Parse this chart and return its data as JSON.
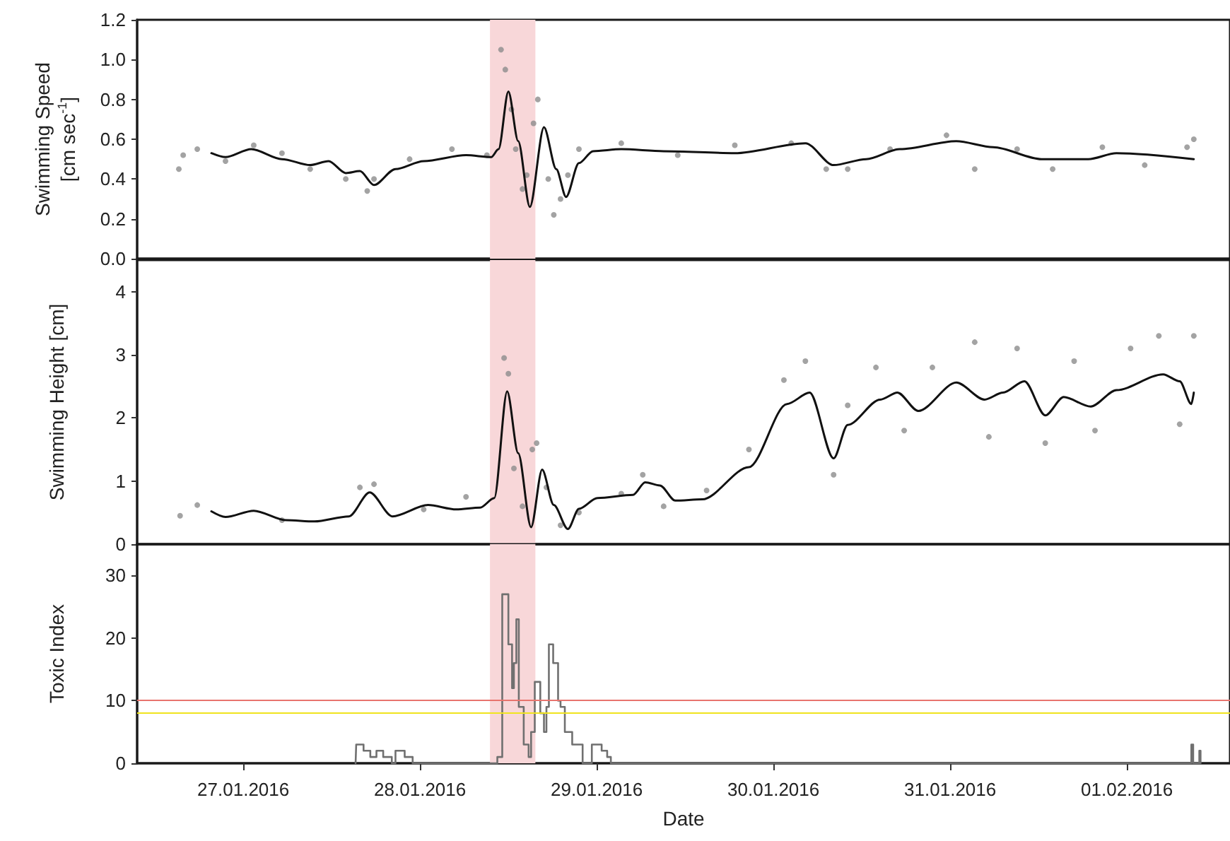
{
  "chart_data": [
    {
      "type": "line",
      "ylabel": "Swimming Speed\n[cm sec$^{-1}$]",
      "marker": "none",
      "tick_labels": "y",
      "xlim": [
        "2016-01-26T09:35",
        "2016-02-01T14:00"
      ],
      "ylim": [
        0,
        1.2
      ],
      "yticks": [
        {
          "value": 0,
          "label": "0.0"
        },
        {
          "value": 0.2,
          "label": "0.2"
        },
        {
          "value": 0.4,
          "label": "0.4"
        },
        {
          "value": 0.6,
          "label": "0.6"
        },
        {
          "value": 0.8,
          "label": "0.8"
        },
        {
          "value": 1,
          "label": "1.0"
        },
        {
          "value": 1.2,
          "label": "1.2"
        }
      ],
      "bands": [
        {
          "axis": "x",
          "from": "2016-01-28T09:30",
          "to": "2016-01-28T15:40",
          "color": "#f8d7d9"
        }
      ],
      "series": [
        {
          "type": "scatter",
          "marker": "circle",
          "color": "#8c8c8c",
          "x": [
            "2016-01-26T15:15",
            "2016-01-26T15:50",
            "2016-01-26T17:45",
            "2016-01-26T21:35",
            "2016-01-27T01:25",
            "2016-01-27T05:15",
            "2016-01-27T09:05",
            "2016-01-27T13:55",
            "2016-01-27T16:50",
            "2016-01-27T17:45",
            "2016-01-27T22:35",
            "2016-01-28T04:20",
            "2016-01-28T09:05",
            "2016-01-28T11:00",
            "2016-01-28T11:35",
            "2016-01-28T12:25",
            "2016-01-28T13:00",
            "2016-01-28T13:55",
            "2016-01-28T14:30",
            "2016-01-28T15:25",
            "2016-01-28T16:00",
            "2016-01-28T17:25",
            "2016-01-28T18:10",
            "2016-01-28T19:05",
            "2016-01-28T20:05",
            "2016-01-28T21:35",
            "2016-01-29T03:20",
            "2016-01-29T11:00",
            "2016-01-29T18:45",
            "2016-01-30T02:25",
            "2016-01-30T07:10",
            "2016-01-30T10:05",
            "2016-01-30T15:50",
            "2016-01-30T23:30",
            "2016-01-31T03:20",
            "2016-01-31T09:05",
            "2016-01-31T13:55",
            "2016-01-31T20:40",
            "2016-02-01T02:25",
            "2016-02-01T08:10",
            "2016-02-01T09:05"
          ],
          "values": [
            0.45,
            0.52,
            0.55,
            0.49,
            0.57,
            0.53,
            0.45,
            0.4,
            0.34,
            0.4,
            0.5,
            0.55,
            0.52,
            1.05,
            0.95,
            0.75,
            0.55,
            0.35,
            0.42,
            0.68,
            0.8,
            0.4,
            0.22,
            0.3,
            0.42,
            0.55,
            0.58,
            0.52,
            0.57,
            0.58,
            0.45,
            0.45,
            0.55,
            0.62,
            0.45,
            0.55,
            0.45,
            0.56,
            0.47,
            0.56,
            0.6
          ]
        },
        {
          "color": "#111111",
          "x": [
            "2016-01-26T19:40",
            "2016-01-26T21:35",
            "2016-01-27T01:05",
            "2016-01-27T05:15",
            "2016-01-27T09:05",
            "2016-01-27T11:35",
            "2016-01-27T13:55",
            "2016-01-27T15:50",
            "2016-01-27T17:45",
            "2016-01-27T20:40",
            "2016-01-28T00:30",
            "2016-01-28T06:15",
            "2016-01-28T09:40",
            "2016-01-28T10:40",
            "2016-01-28T12:00",
            "2016-01-28T13:20",
            "2016-01-28T14:55",
            "2016-01-28T16:50",
            "2016-01-28T18:30",
            "2016-01-28T19:50",
            "2016-01-28T21:35",
            "2016-01-28T23:30",
            "2016-01-29T03:20",
            "2016-01-29T09:05",
            "2016-01-29T18:45",
            "2016-01-30T04:20",
            "2016-01-30T08:10",
            "2016-01-30T12:35",
            "2016-01-30T17:10",
            "2016-01-31T00:50",
            "2016-01-31T05:50",
            "2016-01-31T12:25",
            "2016-01-31T18:45",
            "2016-01-31T22:35",
            "2016-02-01T09:05"
          ],
          "values": [
            0.53,
            0.51,
            0.55,
            0.5,
            0.47,
            0.49,
            0.43,
            0.44,
            0.37,
            0.45,
            0.49,
            0.52,
            0.51,
            0.55,
            0.84,
            0.59,
            0.26,
            0.66,
            0.45,
            0.31,
            0.48,
            0.54,
            0.55,
            0.54,
            0.53,
            0.58,
            0.47,
            0.5,
            0.55,
            0.59,
            0.56,
            0.5,
            0.5,
            0.53,
            0.5
          ]
        }
      ]
    },
    {
      "type": "line",
      "ylabel": "Swimming Height [cm]",
      "marker": "none",
      "tick_labels": "y",
      "xlim": [
        "2016-01-26T09:35",
        "2016-02-01T14:00"
      ],
      "ylim": [
        0,
        4.5
      ],
      "yticks": [
        0,
        1,
        2,
        3,
        4
      ],
      "bands": [
        {
          "axis": "x",
          "from": "2016-01-28T09:30",
          "to": "2016-01-28T15:40",
          "color": "#f8d7d9"
        }
      ],
      "series": [
        {
          "type": "scatter",
          "marker": "circle",
          "color": "#8c8c8c",
          "x": [
            "2016-01-26T15:25",
            "2016-01-26T17:45",
            "2016-01-27T05:15",
            "2016-01-27T15:50",
            "2016-01-27T17:45",
            "2016-01-28T00:30",
            "2016-01-28T06:15",
            "2016-01-28T11:25",
            "2016-01-28T12:00",
            "2016-01-28T12:45",
            "2016-01-28T13:55",
            "2016-01-28T15:15",
            "2016-01-28T15:50",
            "2016-01-28T17:10",
            "2016-01-28T19:05",
            "2016-01-28T21:35",
            "2016-01-29T03:20",
            "2016-01-29T06:15",
            "2016-01-29T09:05",
            "2016-01-29T14:55",
            "2016-01-29T20:40",
            "2016-01-30T01:25",
            "2016-01-30T04:20",
            "2016-01-30T08:10",
            "2016-01-30T10:05",
            "2016-01-30T13:55",
            "2016-01-30T17:45",
            "2016-01-30T21:35",
            "2016-01-31T03:20",
            "2016-01-31T05:15",
            "2016-01-31T09:05",
            "2016-01-31T12:55",
            "2016-01-31T16:50",
            "2016-01-31T19:40",
            "2016-02-01T00:30",
            "2016-02-01T04:20",
            "2016-02-01T07:10",
            "2016-02-01T09:05"
          ],
          "values": [
            0.45,
            0.62,
            0.38,
            0.9,
            0.95,
            0.55,
            0.75,
            2.95,
            2.7,
            1.2,
            0.6,
            1.5,
            1.6,
            0.9,
            0.3,
            0.5,
            0.8,
            1.1,
            0.6,
            0.85,
            1.5,
            2.6,
            2.9,
            1.1,
            2.2,
            2.8,
            1.8,
            2.8,
            3.2,
            1.7,
            3.1,
            1.6,
            2.9,
            1.8,
            3.1,
            3.3,
            1.9,
            3.3
          ]
        },
        {
          "color": "#111111",
          "x": [
            "2016-01-26T19:40",
            "2016-01-26T21:35",
            "2016-01-27T01:25",
            "2016-01-27T05:50",
            "2016-01-27T09:40",
            "2016-01-27T14:20",
            "2016-01-27T17:10",
            "2016-01-27T20:15",
            "2016-01-28T01:05",
            "2016-01-28T04:55",
            "2016-01-28T08:10",
            "2016-01-28T10:05",
            "2016-01-28T11:50",
            "2016-01-28T13:20",
            "2016-01-28T15:05",
            "2016-01-28T16:35",
            "2016-01-28T18:10",
            "2016-01-28T20:05",
            "2016-01-28T21:35",
            "2016-01-29T00:05",
            "2016-01-29T04:55",
            "2016-01-29T06:35",
            "2016-01-29T08:35",
            "2016-01-29T10:40",
            "2016-01-29T14:20",
            "2016-01-29T20:40",
            "2016-01-30T01:50",
            "2016-01-30T04:55",
            "2016-01-30T08:10",
            "2016-01-30T10:05",
            "2016-01-30T14:30",
            "2016-01-30T16:50",
            "2016-01-30T19:40",
            "2016-01-31T00:50",
            "2016-01-31T04:40",
            "2016-01-31T07:10",
            "2016-01-31T10:05",
            "2016-01-31T12:55",
            "2016-01-31T15:25",
            "2016-01-31T19:05",
            "2016-01-31T22:35",
            "2016-02-01T04:55",
            "2016-02-01T07:10",
            "2016-02-01T08:45",
            "2016-02-01T09:05"
          ],
          "values": [
            0.52,
            0.43,
            0.53,
            0.38,
            0.36,
            0.44,
            0.82,
            0.44,
            0.62,
            0.55,
            0.58,
            0.73,
            2.42,
            1.44,
            0.27,
            1.18,
            0.62,
            0.24,
            0.56,
            0.73,
            0.78,
            0.98,
            0.93,
            0.69,
            0.71,
            1.22,
            2.22,
            2.4,
            1.36,
            1.89,
            2.29,
            2.4,
            2.11,
            2.56,
            2.29,
            2.4,
            2.58,
            2.04,
            2.33,
            2.18,
            2.44,
            2.69,
            2.58,
            2.22,
            2.4
          ]
        }
      ]
    },
    {
      "type": "step",
      "ylabel": "Toxic Index",
      "xlabel": "Date",
      "xlim": [
        "2016-01-26T09:35",
        "2016-02-01T14:00"
      ],
      "xticks": [
        {
          "value": "2016-01-27",
          "label": "27.01.2016"
        },
        {
          "value": "2016-01-28",
          "label": "28.01.2016"
        },
        {
          "value": "2016-01-29",
          "label": "29.01.2016"
        },
        {
          "value": "2016-01-30",
          "label": "30.01.2016"
        },
        {
          "value": "2016-01-31",
          "label": "31.01.2016"
        },
        {
          "value": "2016-02-01",
          "label": "01.02.2016"
        }
      ],
      "ylim": [
        0,
        35
      ],
      "yticks": [
        0,
        10,
        20,
        30
      ],
      "bands": [
        {
          "axis": "x",
          "from": "2016-01-28T09:30",
          "to": "2016-01-28T15:40",
          "color": "#f8d7d9"
        }
      ],
      "ref_lines": [
        {
          "axis": "y",
          "value": 10,
          "color": "#e8746e"
        },
        {
          "axis": "y",
          "value": 8,
          "color": "#f0e41e"
        }
      ],
      "series": [
        {
          "color": "#707070",
          "x": [
            "2016-01-27T15:15",
            "2016-01-27T15:20",
            "2016-01-27T16:20",
            "2016-01-27T17:15",
            "2016-01-27T18:05",
            "2016-01-27T19:00",
            "2016-01-27T20:10",
            "2016-01-27T20:40",
            "2016-01-27T21:55",
            "2016-01-27T23:00",
            "2016-01-28T10:05",
            "2016-01-28T10:30",
            "2016-01-28T11:10",
            "2016-01-28T12:00",
            "2016-01-28T12:30",
            "2016-01-28T12:45",
            "2016-01-28T13:05",
            "2016-01-28T13:25",
            "2016-01-28T14:05",
            "2016-01-28T14:45",
            "2016-01-28T15:05",
            "2016-01-28T15:35",
            "2016-01-28T16:20",
            "2016-01-28T16:50",
            "2016-01-28T17:10",
            "2016-01-28T17:30",
            "2016-01-28T18:05",
            "2016-01-28T18:45",
            "2016-01-28T19:05",
            "2016-01-28T19:40",
            "2016-01-28T20:40",
            "2016-01-28T22:05",
            "2016-01-28T23:20",
            "2016-01-29T00:40",
            "2016-01-29T01:25",
            "2016-01-29T01:55",
            "2016-02-01T08:45",
            "2016-02-01T09:00",
            "2016-02-01T09:50",
            "2016-02-01T10:00"
          ],
          "values": [
            0,
            3,
            2,
            1,
            2,
            1,
            0,
            2,
            1,
            0,
            0,
            1,
            27,
            19,
            12,
            16,
            23,
            9,
            3,
            1,
            5,
            13,
            8,
            5,
            9,
            19,
            16,
            10,
            9,
            5,
            3,
            0,
            3,
            2,
            1,
            0,
            3,
            0,
            2,
            0
          ]
        }
      ]
    }
  ]
}
